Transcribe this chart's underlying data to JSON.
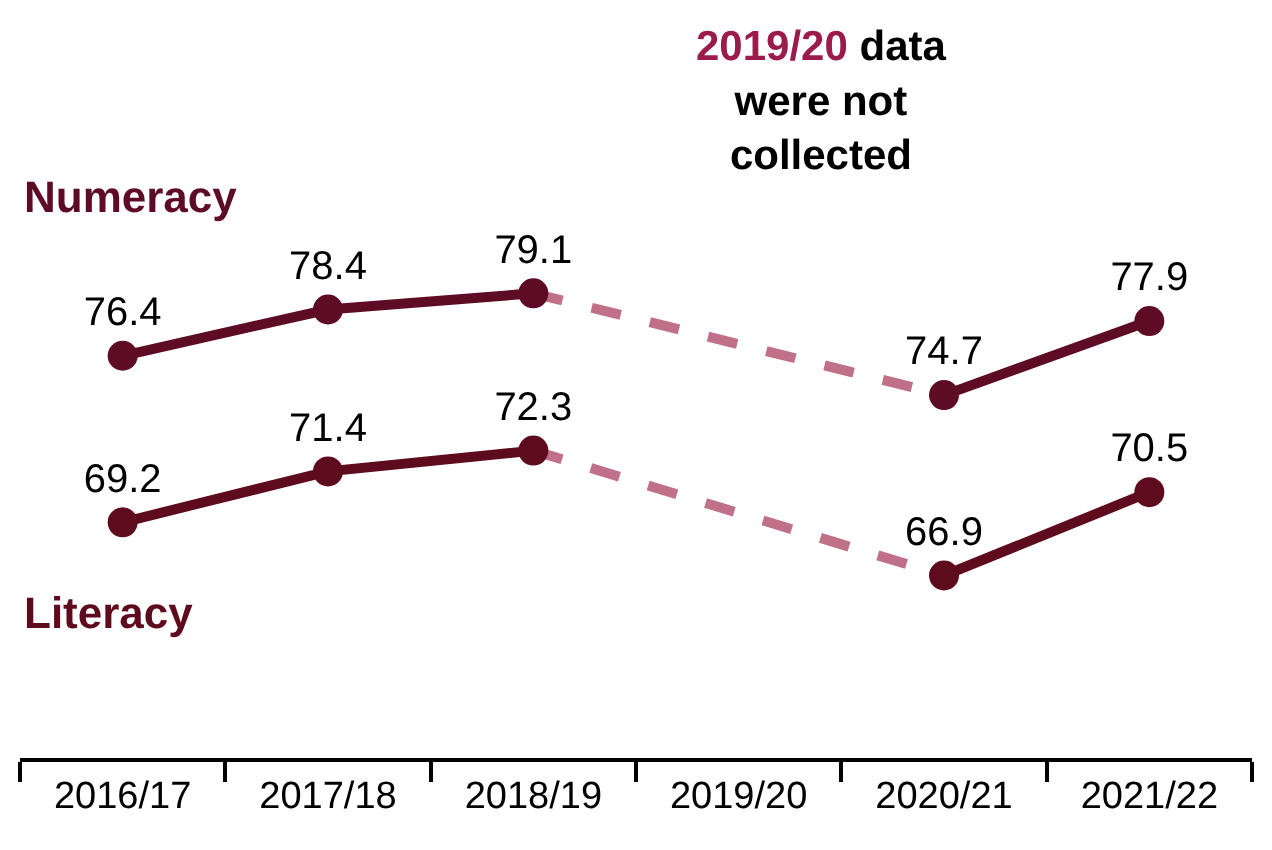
{
  "chart_data": {
    "type": "line",
    "categories": [
      "2016/17",
      "2017/18",
      "2018/19",
      "2019/20",
      "2020/21",
      "2021/22"
    ],
    "series": [
      {
        "name": "Numeracy",
        "color": "#5e0b26",
        "values": [
          76.4,
          78.4,
          79.1,
          null,
          74.7,
          77.9
        ],
        "value_labels": [
          "76.4",
          "78.4",
          "79.1",
          null,
          "74.7",
          "77.9"
        ],
        "marker": "circle",
        "line_style": "solid"
      },
      {
        "name": "Literacy",
        "color": "#5e0b1e",
        "values": [
          69.2,
          71.4,
          72.3,
          null,
          66.9,
          70.5
        ],
        "value_labels": [
          "69.2",
          "71.4",
          "72.3",
          null,
          "66.9",
          "70.5"
        ],
        "marker": "circle",
        "line_style": "solid"
      },
      {
        "color": "#c07088",
        "values": [
          null,
          null,
          79.1,
          null,
          74.7,
          null
        ],
        "marker": "none",
        "line_style": "dashed"
      },
      {
        "color": "#c07088",
        "values": [
          null,
          null,
          72.3,
          null,
          66.9,
          null
        ],
        "marker": "none",
        "line_style": "dashed"
      }
    ],
    "annotations": [
      "2019/20 data were not collected"
    ],
    "legend": false,
    "tick_labels": "x"
  }
}
